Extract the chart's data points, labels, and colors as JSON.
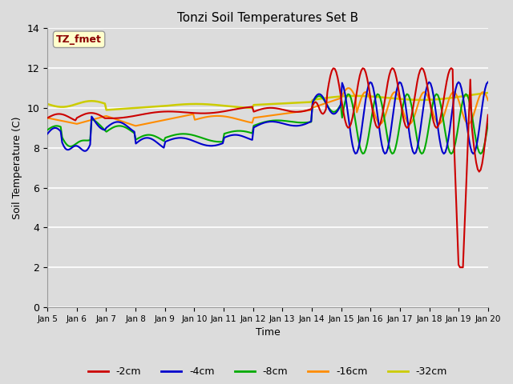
{
  "title": "Tonzi Soil Temperatures Set B",
  "xlabel": "Time",
  "ylabel": "Soil Temperature (C)",
  "ylim": [
    0,
    14
  ],
  "xlim": [
    0,
    15
  ],
  "yticks": [
    0,
    2,
    4,
    6,
    8,
    10,
    12,
    14
  ],
  "xtick_labels": [
    "Jan 5",
    "Jan 6",
    "Jan 7",
    "Jan 8",
    "Jan 9",
    "Jan 10",
    "Jan 11",
    "Jan 12",
    "Jan 13",
    "Jan 14",
    "Jan 15",
    "Jan 16",
    "Jan 17",
    "Jan 18",
    "Jan 19",
    "Jan 20"
  ],
  "annotation_text": "TZ_fmet",
  "annotation_color": "#8B0000",
  "annotation_bg": "#FFFFCC",
  "bg_color": "#DCDCDC",
  "grid_color": "#FFFFFF",
  "series_colors": {
    "-2cm": "#CC0000",
    "-4cm": "#0000CC",
    "-8cm": "#00AA00",
    "-16cm": "#FF8C00",
    "-32cm": "#CCCC00"
  },
  "legend_order": [
    "-2cm",
    "-4cm",
    "-8cm",
    "-16cm",
    "-32cm"
  ]
}
